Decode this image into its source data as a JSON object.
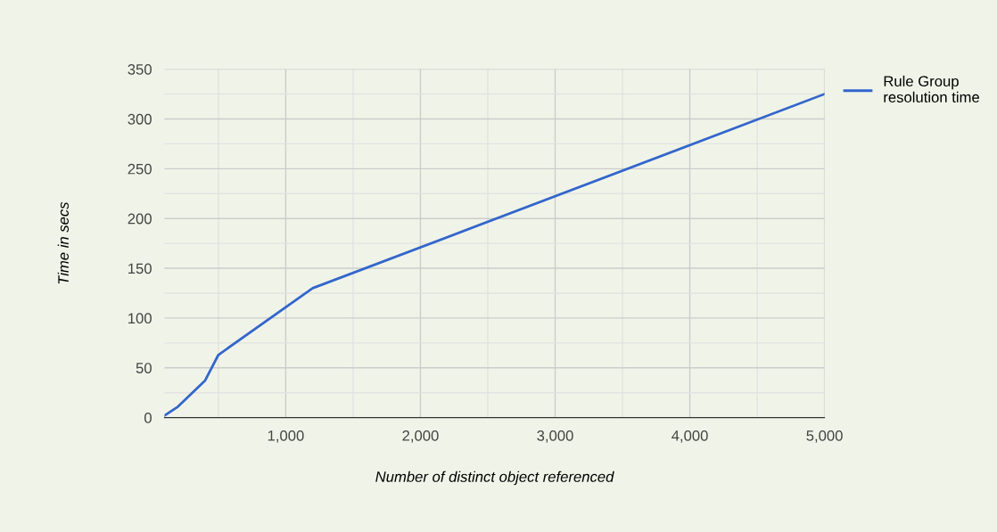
{
  "chart_data": {
    "type": "line",
    "xlabel": "Number of distinct object referenced",
    "ylabel": "Time in secs",
    "x": [
      100,
      200,
      400,
      500,
      1200,
      5000
    ],
    "series": [
      {
        "name": "Rule Group resolution time",
        "color": "#3366cc",
        "values": [
          2,
          11,
          37,
          63,
          130,
          325
        ]
      }
    ],
    "xlim": [
      100,
      5000
    ],
    "xticks": [
      {
        "value": 500,
        "label": null
      },
      {
        "value": 1000,
        "label": "1,000"
      },
      {
        "value": 1500,
        "label": null
      },
      {
        "value": 2000,
        "label": "2,000"
      },
      {
        "value": 2500,
        "label": null
      },
      {
        "value": 3000,
        "label": "3,000"
      },
      {
        "value": 3500,
        "label": null
      },
      {
        "value": 4000,
        "label": "4,000"
      },
      {
        "value": 4500,
        "label": null
      },
      {
        "value": 5000,
        "label": "5,000"
      }
    ],
    "ylim": [
      0,
      350
    ],
    "yticks": [
      0,
      {
        "value": 25,
        "label": null
      },
      50,
      {
        "value": 75,
        "label": null
      },
      100,
      {
        "value": 125,
        "label": null
      },
      150,
      {
        "value": 175,
        "label": null
      },
      200,
      {
        "value": 225,
        "label": null
      },
      250,
      {
        "value": 275,
        "label": null
      },
      300,
      {
        "value": 325,
        "label": null
      },
      350
    ],
    "grid": true,
    "legend": "top right",
    "marker": "none",
    "line_style": "solid"
  }
}
